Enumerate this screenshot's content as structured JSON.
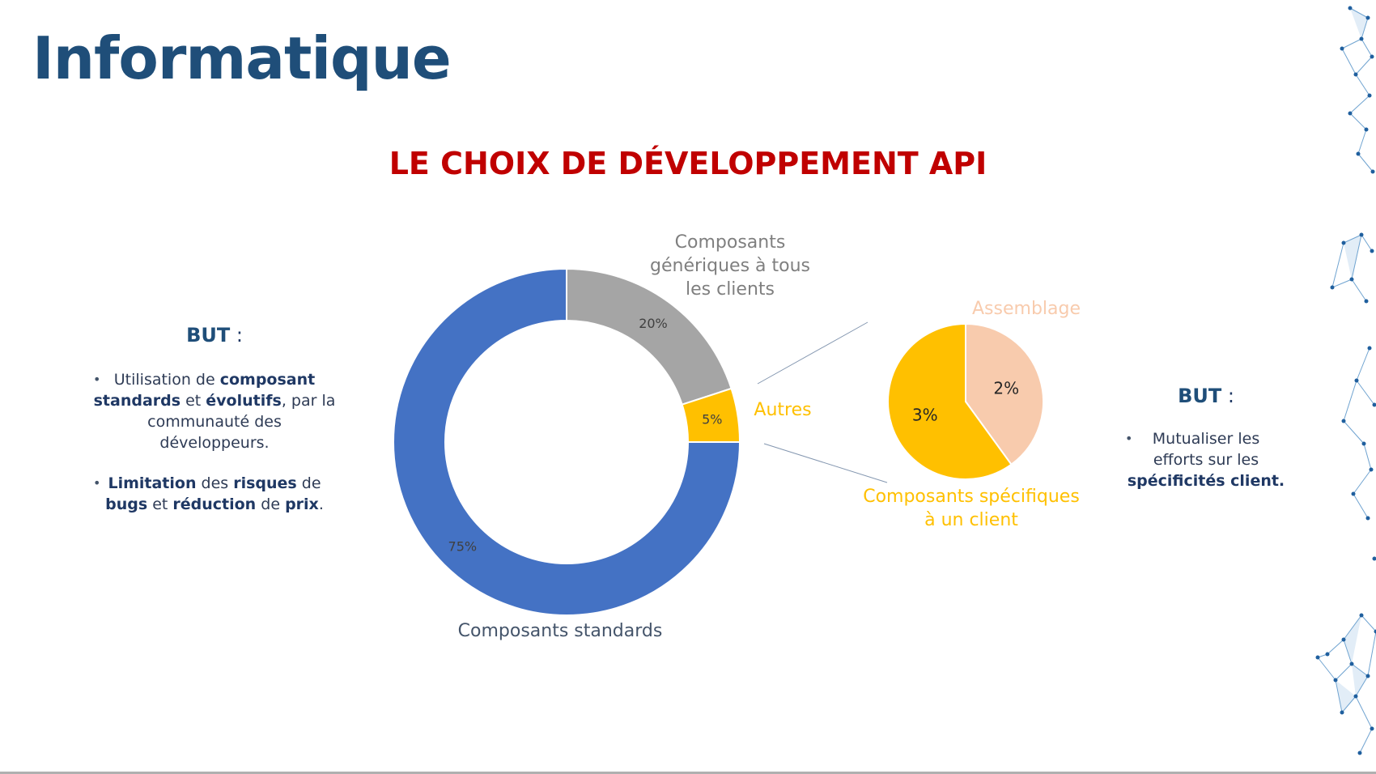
{
  "page_title": "Informatique",
  "left_panel": {
    "goal_label": "BUT",
    "goal_sep": " :",
    "bullet_symbol": "•",
    "bullets": [
      [
        {
          "t": "Utilisation de ",
          "b": false
        },
        {
          "t": "composant standards",
          "b": true
        },
        {
          "t": " et ",
          "b": false
        },
        {
          "t": "évolutifs",
          "b": true
        },
        {
          "t": ", par la communauté des développeurs.",
          "b": false
        }
      ],
      [
        {
          "t": "Limitation",
          "b": true
        },
        {
          "t": " des ",
          "b": false
        },
        {
          "t": "risques",
          "b": true
        },
        {
          "t": " de ",
          "b": false
        },
        {
          "t": "bugs",
          "b": true
        },
        {
          "t": " et ",
          "b": false
        },
        {
          "t": "réduction",
          "b": true
        },
        {
          "t": " de ",
          "b": false
        },
        {
          "t": "prix",
          "b": true
        },
        {
          "t": ".",
          "b": false
        }
      ]
    ]
  },
  "right_panel": {
    "goal_label": "BUT",
    "goal_sep": " :",
    "bullet_symbol": "•",
    "bullets": [
      [
        {
          "t": "Mutualiser les efforts sur les ",
          "b": false
        },
        {
          "t": "spécificités client.",
          "b": true
        }
      ]
    ]
  },
  "chart_data": [
    {
      "type": "pie",
      "variant": "doughnut",
      "title": "LE CHOIX DE DÉVELOPPEMENT API",
      "slices": [
        {
          "label": "Composants génériques à tous les clients",
          "value": 20,
          "value_label": "20%",
          "color": "#a5a5a5",
          "label_color": "#7f7f7f"
        },
        {
          "label": "Autres",
          "value": 5,
          "value_label": "5%",
          "color": "#ffc000",
          "label_color": "#ffc000"
        },
        {
          "label": "Composants standards",
          "value": 75,
          "value_label": "75%",
          "color": "#4472c4",
          "label_color": "#44546a"
        }
      ],
      "start": "top",
      "direction": "clockwise"
    },
    {
      "type": "pie",
      "variant": "sub-pie of 'Autres'",
      "slices": [
        {
          "label": "Assemblage",
          "value": 2,
          "value_label": "2%",
          "color": "#f8cbad",
          "label_color": "#f8cbad"
        },
        {
          "label": "Composants spécifiques à un client",
          "value": 3,
          "value_label": "3%",
          "color": "#ffc000",
          "label_color": "#ffc000"
        }
      ],
      "start": "top",
      "direction": "clockwise"
    }
  ]
}
